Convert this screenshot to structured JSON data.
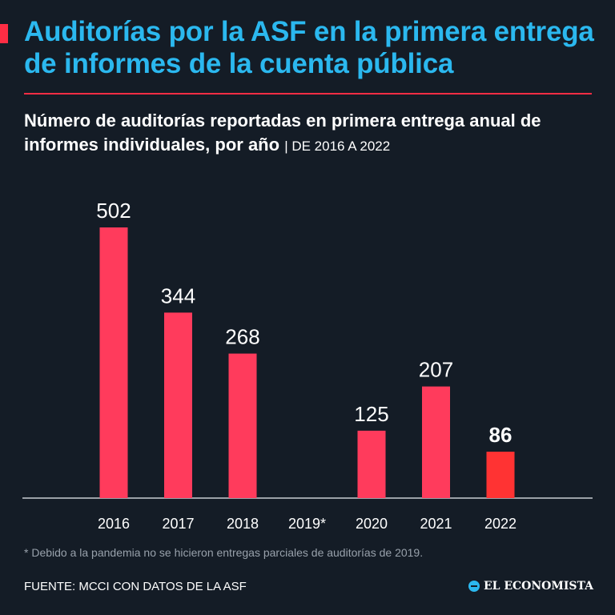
{
  "header": {
    "title": "Auditorías por la ASF en la primera entrega de informes de la cuenta pública",
    "subtitle": "Número de auditorías reportadas en primera entrega anual de informes individuales, por año",
    "range": "| DE 2016 A 2022"
  },
  "footer": {
    "note": "* Debido a la pandemia no se hicieron entregas parciales de auditorías de 2019.",
    "source": "FUENTE: MCCI CON DATOS DE LA ASF",
    "brand": "EL ECONOMISTA"
  },
  "colors": {
    "background": "#141c26",
    "title": "#2bb8ef",
    "bar": "#ff3b5c",
    "highlight_bar": "#ff3333",
    "accent": "#ff2d44"
  },
  "chart_data": {
    "type": "bar",
    "title": "Número de auditorías reportadas en primera entrega anual de informes individuales, por año",
    "xlabel": "",
    "ylabel": "",
    "categories": [
      "2016",
      "2017",
      "2018",
      "2019*",
      "2020",
      "2021",
      "2022"
    ],
    "values": [
      502,
      344,
      268,
      null,
      125,
      207,
      86
    ],
    "value_labels": [
      "502",
      "344",
      "268",
      "",
      "125",
      "207",
      "86"
    ],
    "highlight_category": "2022",
    "ylim": [
      0,
      502
    ],
    "grid": false
  }
}
